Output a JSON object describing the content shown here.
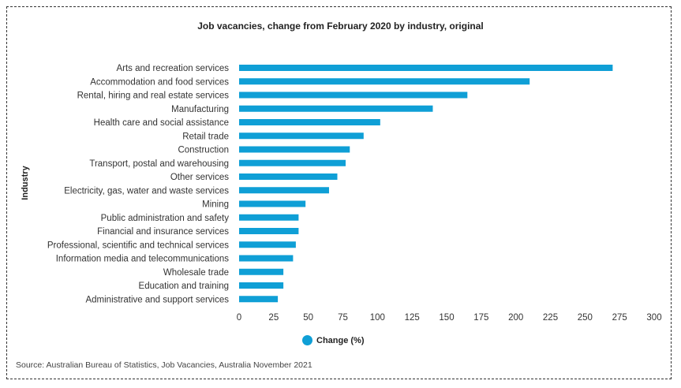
{
  "chart_data": {
    "type": "bar",
    "orientation": "horizontal",
    "title": "Job vacancies, change from February 2020 by industry, original",
    "ylabel": "Industry",
    "xlabel": "",
    "categories": [
      "Arts and recreation services",
      "Accommodation and food services",
      "Rental, hiring and real estate services",
      "Manufacturing",
      "Health care and social assistance",
      "Retail trade",
      "Construction",
      "Transport, postal and warehousing",
      "Other services",
      "Electricity, gas, water and waste services",
      "Mining",
      "Public administration and safety",
      "Financial and insurance services",
      "Professional, scientific and technical services",
      "Information media and telecommunications",
      "Wholesale trade",
      "Education and training",
      "Administrative and support services"
    ],
    "series": [
      {
        "name": "Change (%)",
        "values": [
          270,
          210,
          165,
          140,
          102,
          90,
          80,
          77,
          71,
          65,
          48,
          43,
          43,
          41,
          39,
          32,
          32,
          28
        ]
      }
    ],
    "xlim": [
      0,
      300
    ],
    "xticks": [
      "0",
      "25",
      "50",
      "75",
      "100",
      "125",
      "150",
      "175",
      "200",
      "225",
      "250",
      "275",
      "300"
    ],
    "grid": false,
    "legend": "bottom-center",
    "color": "#0f9fd6"
  },
  "source": "Source: Australian Bureau of Statistics, Job Vacancies, Australia November 2021"
}
